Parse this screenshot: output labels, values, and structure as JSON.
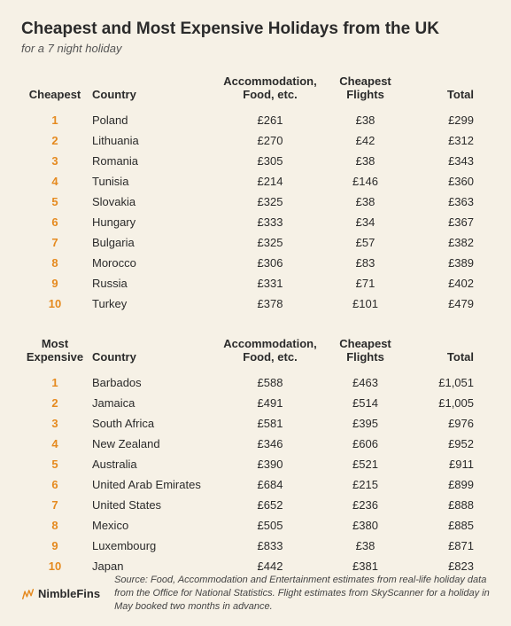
{
  "colors": {
    "background": "#f6f1e6",
    "text": "#2b2b2b",
    "accent": "#e58a1f",
    "logo_accent": "#e58a1f"
  },
  "title": "Cheapest and Most Expensive Holidays from the UK",
  "subtitle": "for a 7 night holiday",
  "tables": {
    "cheapest": {
      "headers": {
        "rank": "Cheapest",
        "country": "Country",
        "accommodation": "Accommodation, Food, etc.",
        "flights": "Cheapest Flights",
        "total": "Total"
      },
      "rows": [
        {
          "rank": "1",
          "country": "Poland",
          "acc": "£261",
          "flight": "£38",
          "total": "£299"
        },
        {
          "rank": "2",
          "country": "Lithuania",
          "acc": "£270",
          "flight": "£42",
          "total": "£312"
        },
        {
          "rank": "3",
          "country": "Romania",
          "acc": "£305",
          "flight": "£38",
          "total": "£343"
        },
        {
          "rank": "4",
          "country": "Tunisia",
          "acc": "£214",
          "flight": "£146",
          "total": "£360"
        },
        {
          "rank": "5",
          "country": "Slovakia",
          "acc": "£325",
          "flight": "£38",
          "total": "£363"
        },
        {
          "rank": "6",
          "country": "Hungary",
          "acc": "£333",
          "flight": "£34",
          "total": "£367"
        },
        {
          "rank": "7",
          "country": "Bulgaria",
          "acc": "£325",
          "flight": "£57",
          "total": "£382"
        },
        {
          "rank": "8",
          "country": "Morocco",
          "acc": "£306",
          "flight": "£83",
          "total": "£389"
        },
        {
          "rank": "9",
          "country": "Russia",
          "acc": "£331",
          "flight": "£71",
          "total": "£402"
        },
        {
          "rank": "10",
          "country": "Turkey",
          "acc": "£378",
          "flight": "£101",
          "total": "£479"
        }
      ]
    },
    "expensive": {
      "headers": {
        "rank": "Most Expensive",
        "country": "Country",
        "accommodation": "Accommodation, Food, etc.",
        "flights": "Cheapest Flights",
        "total": "Total"
      },
      "rows": [
        {
          "rank": "1",
          "country": "Barbados",
          "acc": "£588",
          "flight": "£463",
          "total": "£1,051"
        },
        {
          "rank": "2",
          "country": "Jamaica",
          "acc": "£491",
          "flight": "£514",
          "total": "£1,005"
        },
        {
          "rank": "3",
          "country": "South Africa",
          "acc": "£581",
          "flight": "£395",
          "total": "£976"
        },
        {
          "rank": "4",
          "country": "New Zealand",
          "acc": "£346",
          "flight": "£606",
          "total": "£952"
        },
        {
          "rank": "5",
          "country": "Australia",
          "acc": "£390",
          "flight": "£521",
          "total": "£911"
        },
        {
          "rank": "6",
          "country": "United Arab Emirates",
          "acc": "£684",
          "flight": "£215",
          "total": "£899"
        },
        {
          "rank": "7",
          "country": "United States",
          "acc": "£652",
          "flight": "£236",
          "total": "£888"
        },
        {
          "rank": "8",
          "country": "Mexico",
          "acc": "£505",
          "flight": "£380",
          "total": "£885"
        },
        {
          "rank": "9",
          "country": "Luxembourg",
          "acc": "£833",
          "flight": "£38",
          "total": "£871"
        },
        {
          "rank": "10",
          "country": "Japan",
          "acc": "£442",
          "flight": "£381",
          "total": "£823"
        }
      ]
    }
  },
  "footer": {
    "logo_text": "NimbleFins",
    "source": "Source: Food, Accommodation and Entertainment estimates from real-life holiday data from the Office for National Statistics. Flight estimates from SkyScanner for a holiday in May booked two months in advance."
  }
}
